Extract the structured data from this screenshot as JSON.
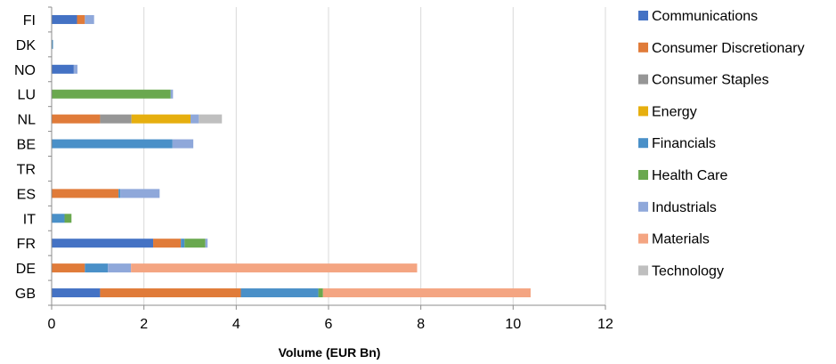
{
  "chart_data": {
    "type": "bar",
    "orientation": "horizontal",
    "stacked": true,
    "title": "",
    "xlabel": "Volume (EUR Bn)",
    "ylabel": "",
    "xlim": [
      0,
      12
    ],
    "xticks": [
      0,
      2,
      4,
      6,
      8,
      10,
      12
    ],
    "grid": true,
    "legend_position": "right",
    "categories": [
      "FI",
      "DK",
      "NO",
      "LU",
      "NL",
      "BE",
      "TR",
      "ES",
      "IT",
      "FR",
      "DE",
      "GB"
    ],
    "series": [
      {
        "name": "Communications",
        "color": "#4472C4",
        "values": [
          0.55,
          0,
          0.48,
          0,
          0,
          0,
          0,
          0,
          0,
          2.2,
          0,
          1.05
        ]
      },
      {
        "name": "Consumer Discretionary",
        "color": "#E07B39",
        "values": [
          0.17,
          0,
          0,
          0,
          1.05,
          0,
          0,
          1.45,
          0,
          0.6,
          0.72,
          3.05
        ]
      },
      {
        "name": "Consumer Staples",
        "color": "#969696",
        "values": [
          0,
          0,
          0,
          0,
          0.68,
          0,
          0,
          0,
          0,
          0,
          0,
          0
        ]
      },
      {
        "name": "Energy",
        "color": "#E6AF0F",
        "values": [
          0,
          0,
          0,
          0,
          1.28,
          0,
          0,
          0,
          0,
          0,
          0,
          0
        ]
      },
      {
        "name": "Financials",
        "color": "#4A90C8",
        "values": [
          0,
          0.03,
          0,
          0,
          0,
          2.62,
          0,
          0.04,
          0.28,
          0.08,
          0.5,
          1.68
        ]
      },
      {
        "name": "Health Care",
        "color": "#6AA84F",
        "values": [
          0,
          0,
          0,
          2.58,
          0,
          0,
          0,
          0,
          0.15,
          0.45,
          0,
          0.1
        ]
      },
      {
        "name": "Industrials",
        "color": "#8FA8DA",
        "values": [
          0.2,
          0,
          0.08,
          0.05,
          0.18,
          0.45,
          0,
          0.85,
          0,
          0.05,
          0.5,
          0
        ]
      },
      {
        "name": "Materials",
        "color": "#F4A582",
        "values": [
          0,
          0,
          0,
          0,
          0,
          0,
          0,
          0,
          0,
          0,
          6.2,
          4.5
        ]
      },
      {
        "name": "Technology",
        "color": "#BFBFBF",
        "values": [
          0,
          0,
          0,
          0,
          0.5,
          0,
          0,
          0,
          0,
          0,
          0,
          0
        ]
      }
    ]
  }
}
